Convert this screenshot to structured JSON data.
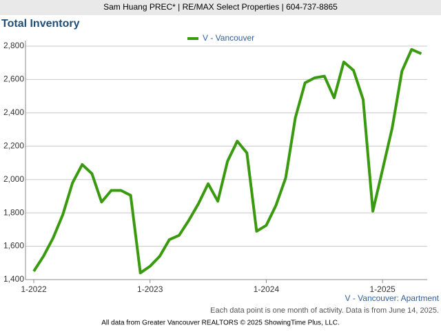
{
  "header": "Sam Huang PREC* | RE/MAX Select Properties | 604-737-8865",
  "chart_data": {
    "type": "line",
    "title": "Total Inventory",
    "categories": [
      "1-2022",
      null,
      null,
      null,
      null,
      null,
      null,
      null,
      null,
      null,
      null,
      null,
      "1-2023",
      null,
      null,
      null,
      null,
      null,
      null,
      null,
      null,
      null,
      null,
      null,
      "1-2024",
      null,
      null,
      null,
      null,
      null,
      null,
      null,
      null,
      null,
      null,
      null,
      "1-2025",
      null,
      null,
      null,
      null
    ],
    "series": [
      {
        "name": "V - Vancouver",
        "color": "#3a9a0f",
        "values": [
          1450,
          1540,
          1650,
          1790,
          1980,
          2090,
          2035,
          1865,
          1935,
          1935,
          1905,
          1440,
          1480,
          1540,
          1640,
          1665,
          1755,
          1855,
          1975,
          1870,
          2110,
          2230,
          2160,
          1690,
          1725,
          1845,
          2010,
          2370,
          2580,
          2610,
          2620,
          2490,
          2705,
          2655,
          2480,
          1810,
          2060,
          2310,
          2650,
          2780,
          2755
        ]
      }
    ],
    "ylim": [
      1400,
      2800
    ],
    "yticks": [
      {
        "value": 1400,
        "label": "1,400"
      },
      {
        "value": 1600,
        "label": "1,600"
      },
      {
        "value": 1800,
        "label": "1,800"
      },
      {
        "value": 2000,
        "label": "2,000"
      },
      {
        "value": 2200,
        "label": "2,200"
      },
      {
        "value": 2400,
        "label": "2,400"
      },
      {
        "value": 2600,
        "label": "2,600"
      },
      {
        "value": 2800,
        "label": "2,800"
      }
    ],
    "grid": true,
    "subtitle": "V - Vancouver: Apartment",
    "note": "Each data point is one month of activity. Data is from June 14, 2025.",
    "source": "All data from Greater Vancouver REALTORS © 2025 ShowingTime Plus, LLC."
  }
}
